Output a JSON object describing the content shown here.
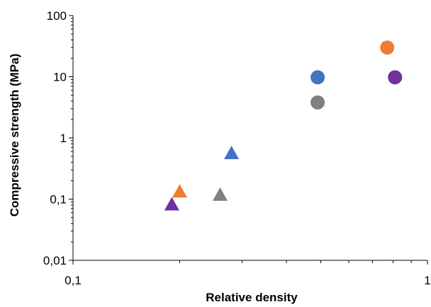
{
  "chart_data": {
    "type": "scatter",
    "title": "",
    "xlabel": "Relative density",
    "ylabel": "Compressive strength (MPa)",
    "xscale": "log",
    "yscale": "log",
    "xlim": [
      0.1,
      1
    ],
    "ylim": [
      0.01,
      100
    ],
    "xticks": [
      {
        "value": 0.1,
        "label": "0,1"
      },
      {
        "value": 1,
        "label": "1"
      }
    ],
    "yticks": [
      {
        "value": 0.01,
        "label": "0,01"
      },
      {
        "value": 0.1,
        "label": "0,1"
      },
      {
        "value": 1,
        "label": "1"
      },
      {
        "value": 10,
        "label": "10"
      },
      {
        "value": 100,
        "label": "100"
      }
    ],
    "grid": false,
    "legend": "none",
    "series": [
      {
        "marker": "triangle",
        "color": "#4472C4",
        "points": [
          {
            "x": 0.28,
            "y": 0.55
          }
        ]
      },
      {
        "marker": "triangle",
        "color": "#ED7D31",
        "points": [
          {
            "x": 0.2,
            "y": 0.13
          }
        ]
      },
      {
        "marker": "triangle",
        "color": "#808080",
        "points": [
          {
            "x": 0.26,
            "y": 0.115
          }
        ]
      },
      {
        "marker": "triangle",
        "color": "#7030A0",
        "points": [
          {
            "x": 0.19,
            "y": 0.08
          }
        ]
      },
      {
        "marker": "circle",
        "color": "#4472C4",
        "points": [
          {
            "x": 0.49,
            "y": 9.8
          }
        ]
      },
      {
        "marker": "circle",
        "color": "#808080",
        "points": [
          {
            "x": 0.49,
            "y": 3.8
          }
        ]
      },
      {
        "marker": "circle",
        "color": "#ED7D31",
        "points": [
          {
            "x": 0.77,
            "y": 30
          }
        ]
      },
      {
        "marker": "circle",
        "color": "#7030A0",
        "points": [
          {
            "x": 0.81,
            "y": 9.8
          }
        ]
      }
    ]
  }
}
